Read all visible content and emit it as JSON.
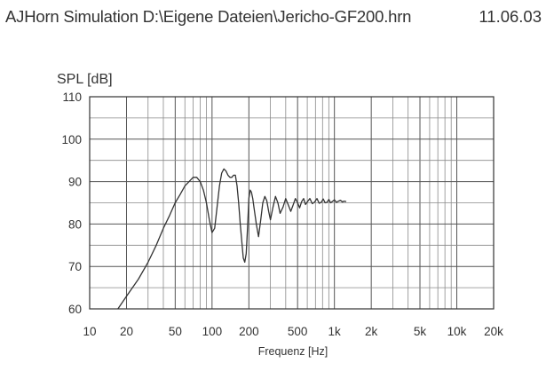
{
  "header": {
    "title": "AJHorn Simulation D:\\Eigene Dateien\\Jericho-GF200.hrn",
    "date": "11.06.03"
  },
  "chart_data": {
    "type": "line",
    "title": "",
    "ylabel": "SPL [dB]",
    "xlabel": "Frequenz [Hz]",
    "x_scale": "log",
    "xlim": [
      10,
      20000
    ],
    "ylim": [
      60,
      110
    ],
    "grid": true,
    "x_ticks": [
      {
        "value": 10,
        "label": "10"
      },
      {
        "value": 20,
        "label": "20"
      },
      {
        "value": 50,
        "label": "50"
      },
      {
        "value": 100,
        "label": "100"
      },
      {
        "value": 200,
        "label": "200"
      },
      {
        "value": 500,
        "label": "500"
      },
      {
        "value": 1000,
        "label": "1k"
      },
      {
        "value": 2000,
        "label": "2k"
      },
      {
        "value": 5000,
        "label": "5k"
      },
      {
        "value": 10000,
        "label": "10k"
      },
      {
        "value": 20000,
        "label": "20k"
      }
    ],
    "y_ticks": [
      {
        "value": 60,
        "label": "60"
      },
      {
        "value": 70,
        "label": "70"
      },
      {
        "value": 80,
        "label": "80"
      },
      {
        "value": 90,
        "label": "90"
      },
      {
        "value": 100,
        "label": "100"
      },
      {
        "value": 110,
        "label": "110"
      }
    ],
    "series": [
      {
        "color": "#333333",
        "x": [
          17,
          20,
          25,
          30,
          35,
          40,
          45,
          50,
          55,
          60,
          65,
          70,
          75,
          80,
          85,
          90,
          95,
          100,
          105,
          110,
          115,
          120,
          125,
          130,
          135,
          140,
          145,
          150,
          155,
          160,
          165,
          170,
          175,
          180,
          185,
          190,
          195,
          200,
          205,
          210,
          215,
          220,
          230,
          240,
          250,
          260,
          270,
          280,
          290,
          300,
          315,
          330,
          345,
          360,
          380,
          400,
          420,
          440,
          460,
          480,
          500,
          520,
          540,
          560,
          580,
          600,
          630,
          660,
          690,
          720,
          750,
          780,
          810,
          840,
          870,
          900,
          930,
          960,
          1000,
          1040,
          1080,
          1120,
          1160,
          1200,
          1250
        ],
        "y": [
          60,
          63,
          67,
          71,
          75,
          79,
          82,
          85,
          87,
          89,
          90,
          91,
          91,
          90,
          88,
          85,
          81,
          78,
          79,
          84,
          89,
          92,
          93,
          92.5,
          91.5,
          91,
          91,
          91.5,
          91.5,
          89,
          85,
          80,
          76,
          72,
          71,
          73,
          79,
          86,
          88,
          87.5,
          86,
          84,
          80,
          77,
          81,
          85,
          86.5,
          85.5,
          83,
          81,
          84,
          86.5,
          85,
          82.5,
          84,
          86,
          84.5,
          83,
          84.5,
          86,
          85,
          83.8,
          85.3,
          86,
          84.6,
          85.2,
          86,
          84.8,
          85.2,
          86,
          84.9,
          85.1,
          85.9,
          85,
          85.1,
          85.8,
          85,
          85.3,
          85.7,
          85.1,
          85.4,
          85.6,
          85.2,
          85.4,
          85.3
        ]
      }
    ]
  }
}
